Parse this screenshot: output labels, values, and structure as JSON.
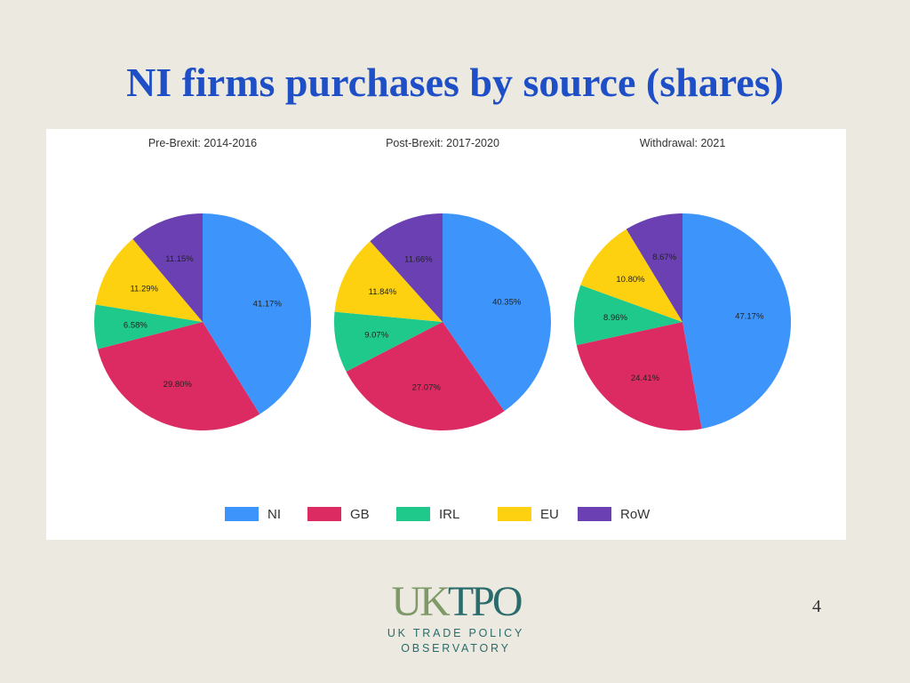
{
  "slide": {
    "title": "NI firms purchases by source (shares)",
    "page_number": "4"
  },
  "logo": {
    "mark_left": "UK",
    "mark_right": "TPO",
    "line1": "UK TRADE POLICY",
    "line2": "OBSERVATORY"
  },
  "chart_data": {
    "type": "pie",
    "categories": [
      "NI",
      "GB",
      "IRL",
      "EU",
      "RoW"
    ],
    "colors": {
      "NI": "#3d95fb",
      "GB": "#dc2b63",
      "IRL": "#1fc98c",
      "EU": "#fdd10f",
      "RoW": "#6a40b2"
    },
    "legend_position": "bottom",
    "pies": [
      {
        "title": "Pre-Brexit: 2014-2016",
        "values": [
          41.17,
          29.8,
          6.58,
          11.29,
          11.15
        ],
        "labels": [
          "41.17%",
          "29.80%",
          "6.58%",
          "11.29%",
          "11.15%"
        ]
      },
      {
        "title": "Post-Brexit: 2017-2020",
        "values": [
          40.35,
          27.07,
          9.07,
          11.84,
          11.66
        ],
        "labels": [
          "40.35%",
          "27.07%",
          "9.07%",
          "11.84%",
          "11.66%"
        ]
      },
      {
        "title": "Withdrawal: 2021",
        "values": [
          47.17,
          24.41,
          8.96,
          10.8,
          8.67
        ],
        "labels": [
          "47.17%",
          "24.41%",
          "8.96%",
          "10.80%",
          "8.67%"
        ]
      }
    ]
  }
}
